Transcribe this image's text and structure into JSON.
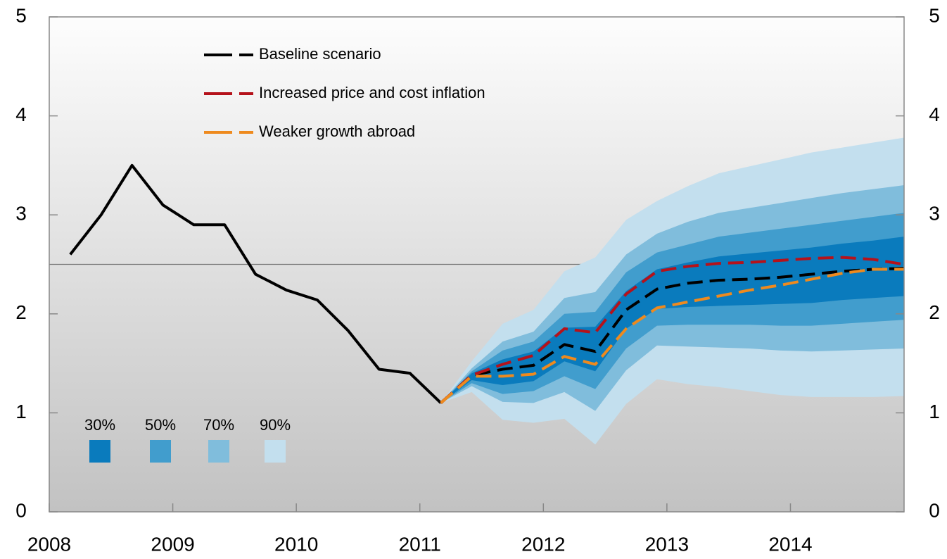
{
  "chart_data": {
    "type": "fan",
    "x": [
      2008.17,
      2008.42,
      2008.67,
      2008.92,
      2009.17,
      2009.42,
      2009.67,
      2009.92,
      2010.17,
      2010.42,
      2010.67,
      2010.92,
      2011.17,
      2011.42,
      2011.67,
      2011.92,
      2012.17,
      2012.42,
      2012.67,
      2012.92,
      2013.17,
      2013.42,
      2013.67,
      2013.92,
      2014.17,
      2014.42,
      2014.67,
      2014.92
    ],
    "xlim": [
      2008,
      2014.92
    ],
    "xticks": [
      2008,
      2009,
      2010,
      2011,
      2012,
      2013,
      2014
    ],
    "ylim": [
      0,
      5
    ],
    "yticks": [
      0,
      1,
      2,
      3,
      4,
      5
    ],
    "y2lim": [
      0,
      5
    ],
    "y2ticks": [
      0,
      1,
      2,
      3,
      4,
      5
    ],
    "hline": 2.5,
    "series": [
      {
        "color": "#000000",
        "dashed": false,
        "values": [
          2.6,
          3.0,
          3.5,
          3.1,
          2.9,
          2.9,
          2.4,
          2.24,
          2.14,
          1.83,
          1.44,
          1.4,
          1.1,
          null,
          null,
          null,
          null,
          null,
          null,
          null,
          null,
          null,
          null,
          null,
          null,
          null,
          null,
          null
        ]
      },
      {
        "name": "Baseline scenario",
        "color": "#000000",
        "dashed": true,
        "values": [
          null,
          null,
          null,
          null,
          null,
          null,
          null,
          null,
          null,
          null,
          null,
          null,
          1.1,
          1.38,
          1.44,
          1.48,
          1.69,
          1.62,
          2.04,
          2.25,
          2.31,
          2.34,
          2.35,
          2.37,
          2.4,
          2.43,
          2.45,
          2.46
        ]
      },
      {
        "name": "Increased price and cost inflation",
        "color": "#b5121b",
        "dashed": true,
        "values": [
          null,
          null,
          null,
          null,
          null,
          null,
          null,
          null,
          null,
          null,
          null,
          null,
          1.1,
          1.38,
          1.49,
          1.58,
          1.85,
          1.81,
          2.2,
          2.43,
          2.48,
          2.51,
          2.52,
          2.54,
          2.56,
          2.57,
          2.55,
          2.5
        ]
      },
      {
        "name": "Weaker growth abroad",
        "color": "#ee8a1e",
        "dashed": true,
        "values": [
          null,
          null,
          null,
          null,
          null,
          null,
          null,
          null,
          null,
          null,
          null,
          null,
          1.1,
          1.37,
          1.37,
          1.39,
          1.57,
          1.49,
          1.85,
          2.06,
          2.12,
          2.18,
          2.24,
          2.29,
          2.35,
          2.41,
          2.45,
          2.45
        ]
      }
    ],
    "bands": [
      {
        "name": "90%",
        "color": "#c3dfee",
        "upper": [
          null,
          null,
          null,
          null,
          null,
          null,
          null,
          null,
          null,
          null,
          null,
          null,
          1.1,
          1.52,
          1.9,
          2.04,
          2.43,
          2.57,
          2.95,
          3.14,
          3.29,
          3.42,
          3.49,
          3.56,
          3.63,
          3.68,
          3.73,
          3.78
        ],
        "lower": [
          null,
          null,
          null,
          null,
          null,
          null,
          null,
          null,
          null,
          null,
          null,
          null,
          1.1,
          1.21,
          0.93,
          0.9,
          0.94,
          0.68,
          1.09,
          1.34,
          1.29,
          1.26,
          1.22,
          1.18,
          1.16,
          1.16,
          1.16,
          1.17
        ]
      },
      {
        "name": "70%",
        "color": "#80bddc",
        "upper": [
          null,
          null,
          null,
          null,
          null,
          null,
          null,
          null,
          null,
          null,
          null,
          null,
          1.1,
          1.45,
          1.72,
          1.82,
          2.16,
          2.22,
          2.6,
          2.81,
          2.93,
          3.02,
          3.07,
          3.12,
          3.17,
          3.22,
          3.26,
          3.3
        ],
        "lower": [
          null,
          null,
          null,
          null,
          null,
          null,
          null,
          null,
          null,
          null,
          null,
          null,
          1.1,
          1.27,
          1.11,
          1.1,
          1.21,
          1.02,
          1.43,
          1.68,
          1.67,
          1.66,
          1.65,
          1.63,
          1.62,
          1.63,
          1.64,
          1.65
        ]
      },
      {
        "name": "50%",
        "color": "#419dcd",
        "upper": [
          null,
          null,
          null,
          null,
          null,
          null,
          null,
          null,
          null,
          null,
          null,
          null,
          1.1,
          1.42,
          1.63,
          1.72,
          2.0,
          2.02,
          2.42,
          2.62,
          2.7,
          2.78,
          2.82,
          2.86,
          2.9,
          2.94,
          2.98,
          3.02
        ],
        "lower": [
          null,
          null,
          null,
          null,
          null,
          null,
          null,
          null,
          null,
          null,
          null,
          null,
          1.1,
          1.3,
          1.19,
          1.22,
          1.37,
          1.24,
          1.65,
          1.88,
          1.89,
          1.89,
          1.89,
          1.88,
          1.88,
          1.9,
          1.92,
          1.94
        ]
      },
      {
        "name": "30%",
        "color": "#0a7bbd",
        "upper": [
          null,
          null,
          null,
          null,
          null,
          null,
          null,
          null,
          null,
          null,
          null,
          null,
          1.1,
          1.4,
          1.54,
          1.62,
          1.86,
          1.87,
          2.23,
          2.45,
          2.52,
          2.58,
          2.61,
          2.64,
          2.67,
          2.71,
          2.74,
          2.78
        ],
        "lower": [
          null,
          null,
          null,
          null,
          null,
          null,
          null,
          null,
          null,
          null,
          null,
          null,
          1.1,
          1.33,
          1.28,
          1.32,
          1.52,
          1.42,
          1.85,
          2.05,
          2.07,
          2.08,
          2.09,
          2.1,
          2.11,
          2.14,
          2.16,
          2.18
        ]
      }
    ]
  }
}
